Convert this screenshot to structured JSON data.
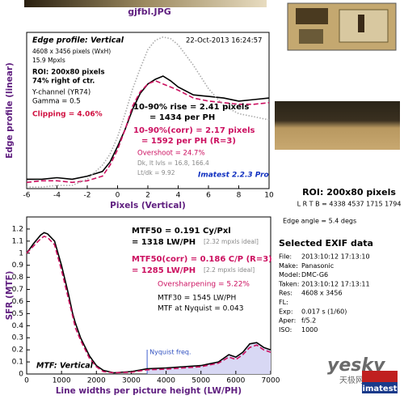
{
  "header": {
    "file": "gjfbl.JPG"
  },
  "chart_data": [
    {
      "type": "line",
      "title": "Edge profile: Vertical",
      "xlabel": "Pixels (Vertical)",
      "ylabel": "Edge profile (linear)",
      "x": [
        -6,
        -5,
        -4,
        -3,
        -2,
        -1,
        -0.5,
        0,
        0.5,
        1,
        1.5,
        2,
        2.5,
        3,
        3.5,
        4,
        5,
        6,
        7,
        8,
        9,
        10
      ],
      "series": [
        {
          "color": "#000000",
          "style": "solid",
          "values": [
            0.06,
            0.06,
            0.07,
            0.06,
            0.08,
            0.11,
            0.17,
            0.27,
            0.38,
            0.51,
            0.61,
            0.67,
            0.7,
            0.72,
            0.69,
            0.65,
            0.6,
            0.59,
            0.58,
            0.56,
            0.57,
            0.58
          ]
        },
        {
          "color": "#cc1060",
          "style": "dashed",
          "values": [
            0.04,
            0.05,
            0.05,
            0.04,
            0.05,
            0.08,
            0.15,
            0.25,
            0.38,
            0.53,
            0.62,
            0.67,
            0.69,
            0.67,
            0.65,
            0.63,
            0.58,
            0.56,
            0.55,
            0.54,
            0.54,
            0.55
          ]
        },
        {
          "color": "#aaaaaa",
          "style": "dotted",
          "values": [
            0.01,
            0.01,
            0.02,
            0.02,
            0.06,
            0.15,
            0.22,
            0.33,
            0.48,
            0.64,
            0.77,
            0.89,
            0.95,
            0.97,
            0.96,
            0.92,
            0.79,
            0.64,
            0.53,
            0.48,
            0.46,
            0.44
          ]
        }
      ],
      "xlim": [
        -6,
        10
      ],
      "xticks": [
        -6,
        -4,
        -2,
        0,
        2,
        4,
        6,
        8,
        10
      ],
      "ylim": [
        0,
        1
      ],
      "annotations": [
        "22-Oct-2013 16:24:57",
        "4608 x 3456 pixels (WxH)",
        "15.9 Mpxls",
        "ROI: 200x80 pixels",
        "74% right of ctr.",
        "Y-channel  (YR74)",
        "Gamma = 0.5",
        "Clipping =  4.06%",
        "10-90% rise = 2.41 pixels",
        "= 1434 per PH",
        "10-90%(corr) = 2.17 pixels",
        "= 1592 per PH   (R=3)",
        "Overshoot = 24.7%",
        "Dk, lt lvls = 16.8, 166.4",
        "Lt/dk = 9.92",
        "Imatest 2.2.3 Pro"
      ]
    },
    {
      "type": "line",
      "title": "MTF: Vertical",
      "xlabel": "Line widths per picture height (LW/PH)",
      "ylabel": "SFR (MTF)",
      "x": [
        0,
        200,
        400,
        500,
        600,
        800,
        1000,
        1200,
        1318,
        1400,
        1545,
        1800,
        2000,
        2200,
        2500,
        3000,
        3456,
        4000,
        4500,
        5000,
        5500,
        5800,
        6000,
        6200,
        6400,
        6600,
        6800,
        7000
      ],
      "series": [
        {
          "color": "#000000",
          "style": "solid",
          "values": [
            1.0,
            1.08,
            1.15,
            1.17,
            1.16,
            1.1,
            0.9,
            0.66,
            0.5,
            0.42,
            0.3,
            0.15,
            0.07,
            0.03,
            0.01,
            0.02,
            0.043,
            0.05,
            0.06,
            0.07,
            0.1,
            0.16,
            0.14,
            0.18,
            0.25,
            0.26,
            0.22,
            0.2
          ]
        },
        {
          "color": "#cc1060",
          "style": "dashed",
          "values": [
            1.0,
            1.06,
            1.12,
            1.14,
            1.13,
            1.07,
            0.86,
            0.62,
            0.48,
            0.38,
            0.28,
            0.13,
            0.06,
            0.02,
            0.01,
            0.015,
            0.035,
            0.04,
            0.05,
            0.06,
            0.09,
            0.14,
            0.12,
            0.16,
            0.22,
            0.24,
            0.2,
            0.18
          ]
        }
      ],
      "xlim": [
        0,
        7000
      ],
      "xticks": [
        0,
        1000,
        2000,
        3000,
        4000,
        5000,
        6000,
        7000
      ],
      "ylim": [
        0,
        1.3
      ],
      "yticks": [
        0,
        0.1,
        0.2,
        0.3,
        0.4,
        0.5,
        0.6,
        0.7,
        0.8,
        0.9,
        1,
        1.1,
        1.2
      ],
      "nyquist": {
        "value": 3456,
        "label": "Nyquist freq."
      },
      "annotations": [
        "MTF50 = 0.191 Cy/Pxl",
        "= 1318 LW/PH",
        "[2.32 mpxls ideal]",
        "MTF50(corr) = 0.186 C/P   (R=3)",
        "= 1285 LW/PH",
        "[2.2 mpxls ideal]",
        "Oversharpening = 5.22%",
        "MTF30 = 1545 LW/PH",
        "MTF at Nyquist = 0.043"
      ]
    }
  ],
  "roi": {
    "title": "ROI: 200x80 pixels",
    "coords": "L R T B = 4338 4537  1715 1794",
    "angle": "Edge angle = 5.4 degs"
  },
  "exif": {
    "title": "Selected EXIF data",
    "rows": [
      [
        "File:",
        "2013:10:12 17:13:10"
      ],
      [
        "Make:",
        "Panasonic"
      ],
      [
        "Model:",
        "DMC-G6"
      ],
      [
        "Taken:",
        "2013:10:12 17:13:11"
      ],
      [
        "Res:",
        "4608 x 3456"
      ],
      [
        "FL:",
        ""
      ],
      [
        "Exp:",
        "0.017 s  (1/60)"
      ],
      [
        "Aper:",
        "f/5.2"
      ],
      [
        "ISO:",
        "1000"
      ]
    ]
  },
  "branding": {
    "site": "yesky",
    "site_cn": "天极网",
    "product": "imatest"
  }
}
